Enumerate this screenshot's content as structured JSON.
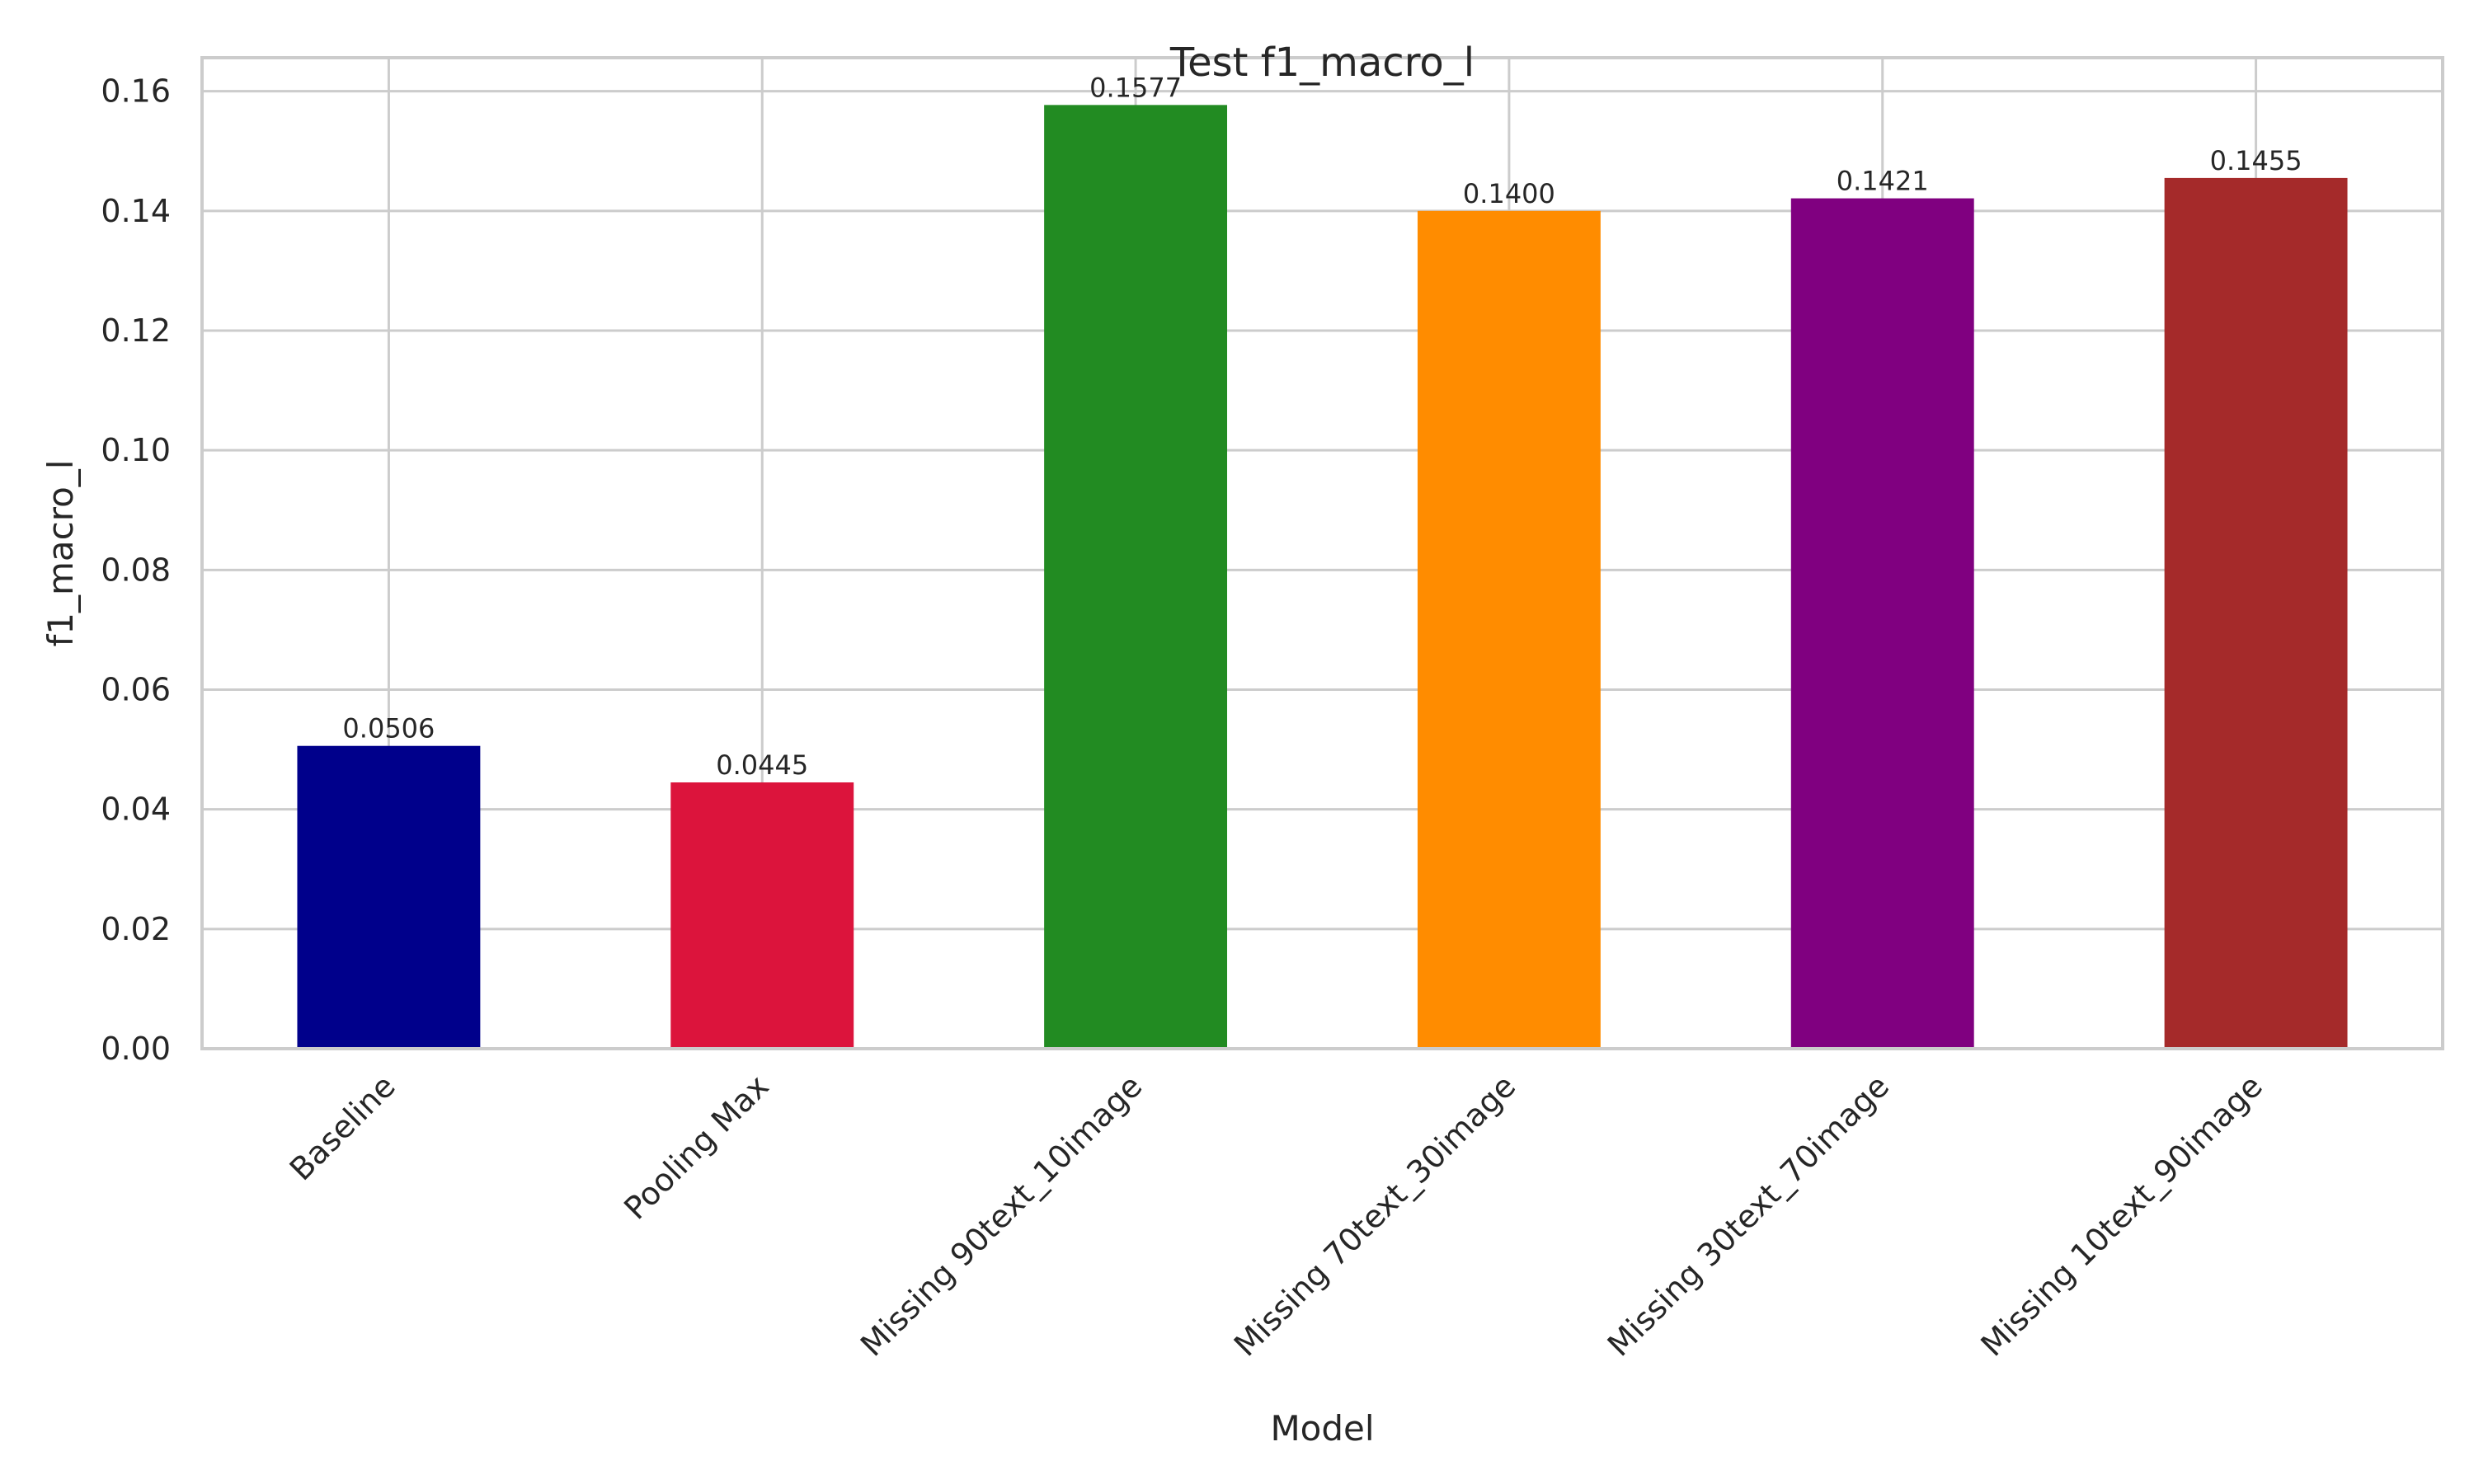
{
  "chart_data": {
    "type": "bar",
    "title": "Test f1_macro_l",
    "xlabel": "Model",
    "ylabel": "f1_macro_l",
    "categories": [
      "Baseline",
      "Pooling Max",
      "Missing 90text_10image",
      "Missing 70text_30image",
      "Missing 30text_70image",
      "Missing 10text_90image"
    ],
    "values": [
      0.0506,
      0.0445,
      0.1577,
      0.14,
      0.1421,
      0.1455
    ],
    "data_labels": [
      "0.0506",
      "0.0445",
      "0.1577",
      "0.1400",
      "0.1421",
      "0.1455"
    ],
    "colors": [
      "#00008b",
      "#dc143c",
      "#228b22",
      "#ff8c00",
      "#800080",
      "#a52a2a"
    ],
    "ylim": [
      0,
      0.1656
    ],
    "yticks": [
      0.0,
      0.02,
      0.04,
      0.06,
      0.08,
      0.1,
      0.12,
      0.14,
      0.16
    ],
    "ytick_labels": [
      "0.00",
      "0.02",
      "0.04",
      "0.06",
      "0.08",
      "0.10",
      "0.12",
      "0.14",
      "0.16"
    ],
    "grid": true,
    "legend": "none"
  }
}
